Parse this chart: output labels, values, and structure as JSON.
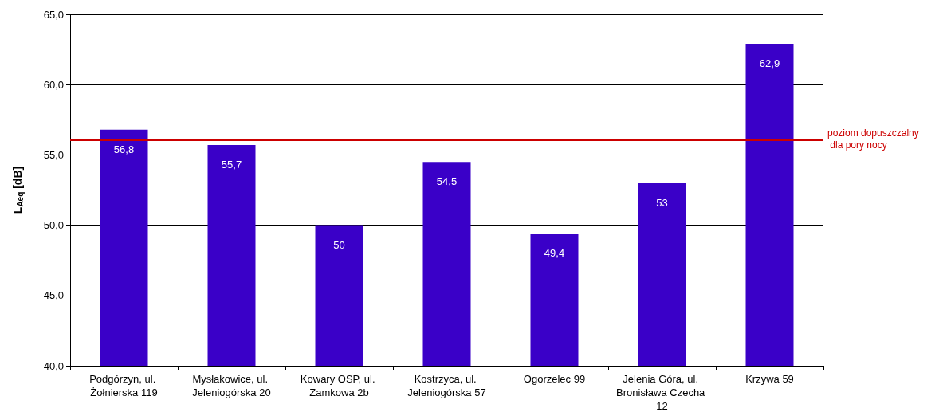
{
  "chart_data": {
    "type": "bar",
    "ylabel": "L$_{Aeq}$ [dB]",
    "categories": [
      "Podgórzyn, ul. Żołnierska 119",
      "Mysłakowice, ul. Jeleniogórska 20",
      "Kowary OSP, ul. Zamkowa 2b",
      "Kostrzyca, ul. Jeleniogórska 57",
      "Ogorzelec 99",
      "Jelenia Góra, ul. Bronisława Czecha 12",
      "Krzywa 59"
    ],
    "values": [
      56.8,
      55.7,
      50,
      54.5,
      49.4,
      53,
      62.9
    ],
    "value_labels": [
      "56,8",
      "55,7",
      "50",
      "54,5",
      "49,4",
      "53",
      "62,9"
    ],
    "color": "#3a00c8",
    "ylim": [
      40,
      65
    ],
    "yticks": [
      {
        "value": 40,
        "label": "40,0"
      },
      {
        "value": 45,
        "label": "45,0"
      },
      {
        "value": 50,
        "label": "50,0"
      },
      {
        "value": 55,
        "label": "55,0"
      },
      {
        "value": 60,
        "label": "60,0"
      },
      {
        "value": 65,
        "label": "65,0"
      }
    ],
    "grid": "y",
    "ref_lines": [
      {
        "axis": "y",
        "value": 56.1,
        "label": "poziom dopuszczalny dla pory nocy",
        "color": "#cc0000"
      }
    ]
  }
}
